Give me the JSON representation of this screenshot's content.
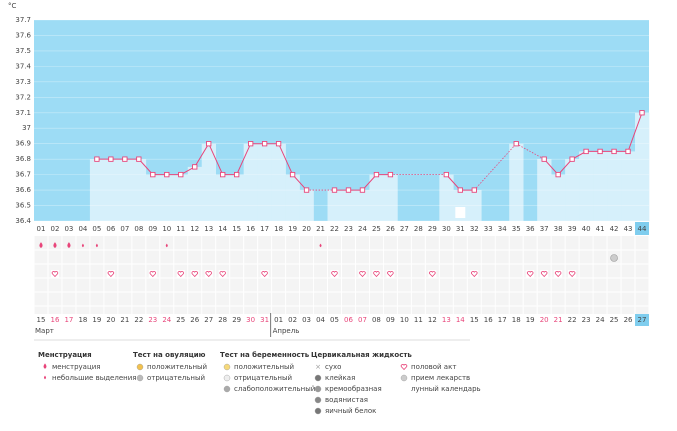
{
  "chart_data": {
    "type": "line",
    "y_label": "°C",
    "categories": [
      "01",
      "02",
      "03",
      "04",
      "05",
      "06",
      "07",
      "08",
      "09",
      "10",
      "11",
      "12",
      "13",
      "14",
      "15",
      "16",
      "17",
      "18",
      "19",
      "20",
      "21",
      "22",
      "23",
      "24",
      "25",
      "26",
      "27",
      "28",
      "29",
      "30",
      "31",
      "32",
      "33",
      "34",
      "35",
      "36",
      "37",
      "38",
      "39",
      "40",
      "41",
      "42",
      "43",
      "44"
    ],
    "values": [
      null,
      null,
      null,
      null,
      36.8,
      36.8,
      36.8,
      36.8,
      36.7,
      36.7,
      36.7,
      36.75,
      36.9,
      36.7,
      36.7,
      36.9,
      36.9,
      36.9,
      36.7,
      36.6,
      null,
      36.6,
      36.6,
      36.6,
      36.7,
      36.7,
      null,
      null,
      null,
      36.7,
      36.6,
      36.6,
      null,
      null,
      36.9,
      null,
      36.8,
      36.7,
      36.8,
      36.85,
      36.85,
      36.85,
      36.85,
      37.1
    ],
    "color": "#e8457a",
    "area_color": "#d6f0fb",
    "background": "#9ddcf5",
    "ylim": [
      36.4,
      37.7
    ],
    "yticks": [
      36.4,
      36.5,
      36.6,
      36.7,
      36.8,
      36.9,
      37,
      37.1,
      37.2,
      37.3,
      37.4,
      37.5,
      37.6,
      37.7
    ],
    "grid": true
  },
  "calendar": {
    "dates": [
      "15",
      "16",
      "17",
      "18",
      "19",
      "20",
      "21",
      "22",
      "23",
      "24",
      "25",
      "26",
      "27",
      "28",
      "29",
      "30",
      "31",
      "01",
      "02",
      "03",
      "04",
      "05",
      "06",
      "07",
      "08",
      "09",
      "10",
      "11",
      "12",
      "13",
      "14",
      "15",
      "16",
      "17",
      "18",
      "19",
      "20",
      "21",
      "22",
      "23",
      "24",
      "25",
      "26",
      "27"
    ],
    "weekend": [
      false,
      true,
      true,
      false,
      false,
      false,
      false,
      false,
      true,
      true,
      false,
      false,
      false,
      false,
      false,
      true,
      true,
      false,
      false,
      false,
      false,
      false,
      true,
      true,
      false,
      false,
      false,
      false,
      false,
      true,
      true,
      false,
      false,
      false,
      false,
      false,
      true,
      true,
      false,
      false,
      false,
      false,
      false,
      false
    ],
    "months": [
      "Март",
      "Апрель"
    ]
  },
  "legend": [
    {
      "title": "Менструация",
      "items": [
        "менструация",
        "небольшие выделения"
      ]
    },
    {
      "title": "Тест на овуляцию",
      "items": [
        "положительный",
        "отрицательный"
      ]
    },
    {
      "title": "Тест на беременность",
      "items": [
        "положительный",
        "отрицательный",
        "слабоположительный"
      ]
    },
    {
      "title": "Цервикальная жидкость",
      "items": [
        "сухо",
        "клейкая",
        "кремообразная",
        "водянистая",
        "яичный белок"
      ]
    },
    {
      "items": [
        "половой акт",
        "прием лекарств",
        "лунный календарь"
      ]
    }
  ]
}
